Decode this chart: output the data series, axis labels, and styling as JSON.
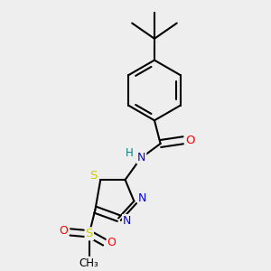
{
  "bg_color": "#eeeeee",
  "line_color": "#000000",
  "bond_width": 1.5,
  "atom_colors": {
    "N": "#0000ff",
    "O": "#ff0000",
    "S": "#cccc00",
    "H": "#008080",
    "C": "#000000"
  },
  "font_size": 8.5
}
